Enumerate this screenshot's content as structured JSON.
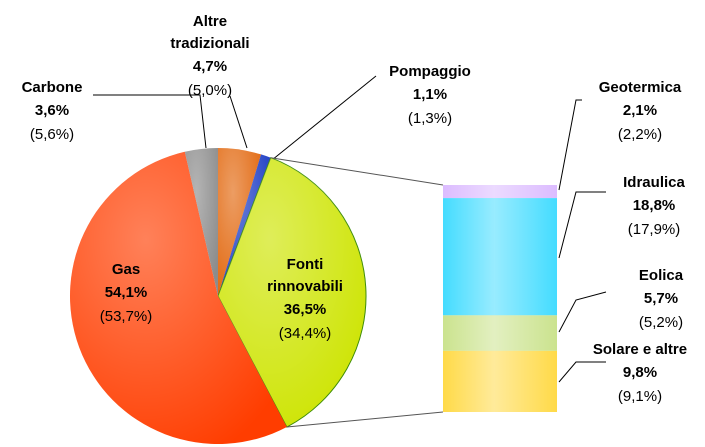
{
  "chart_data": {
    "type": "pie-of-bar",
    "categories": [
      "Altre tradizionali",
      "Pompaggio",
      "Fonti rinnovabili",
      "Gas",
      "Carbone"
    ],
    "values": [
      4.7,
      1.1,
      36.5,
      54.1,
      3.6
    ],
    "value_labels": [
      "4,7%",
      "1,1%",
      "36,5%",
      "54,1%",
      "3,6%"
    ],
    "previous_values": [
      5.0,
      1.3,
      34.4,
      53.7,
      5.6
    ],
    "previous_value_labels": [
      "(5,0%)",
      "(1,3%)",
      "(34,4%)",
      "(53,7%)",
      "(5,6%)"
    ],
    "colors": [
      "#e2680f",
      "#1c3cc4",
      "#cde400",
      "#ff3d00",
      "#8c8c8c"
    ],
    "breakdown": {
      "categories": [
        "Geotermica",
        "Idraulica",
        "Eolica",
        "Solare e altre"
      ],
      "values": [
        2.1,
        18.8,
        5.7,
        9.8
      ],
      "value_labels": [
        "2,1%",
        "18,8%",
        "5,7%",
        "9,8%"
      ],
      "previous_values": [
        2.2,
        17.9,
        5.2,
        9.1
      ],
      "previous_value_labels": [
        "(2,2%)",
        "(17,9%)",
        "(5,2%)",
        "(9,1%)"
      ],
      "colors": [
        "#dcbcff",
        "#44dcff",
        "#cbe38e",
        "#ffda48"
      ]
    }
  }
}
